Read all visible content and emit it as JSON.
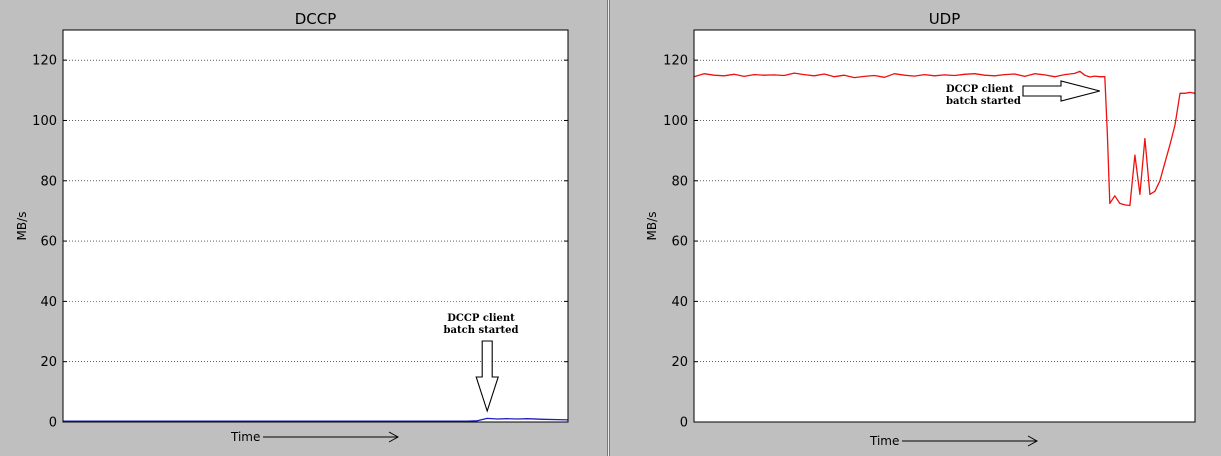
{
  "chart_data": [
    {
      "type": "line",
      "title": "DCCP",
      "xlabel": "Time",
      "ylabel": "MB/s",
      "ylim": [
        0,
        130
      ],
      "yticks": [
        0,
        20,
        40,
        60,
        80,
        100,
        120
      ],
      "grid": "horizontal dotted",
      "line_color": "#1f1fbf",
      "series": [
        {
          "x": [
            0,
            10,
            20,
            30,
            40,
            50,
            60,
            70,
            75,
            80,
            82,
            84,
            86,
            88,
            90,
            92,
            95,
            98,
            100
          ],
          "values": [
            0.3,
            0.3,
            0.3,
            0.3,
            0.3,
            0.3,
            0.3,
            0.3,
            0.3,
            0.3,
            0.4,
            1.2,
            1.0,
            1.1,
            1.0,
            1.1,
            0.9,
            0.8,
            0.7
          ]
        }
      ],
      "annotations": [
        {
          "text_line1": "DCCP client",
          "text_line2": "batch started",
          "arrow": "down",
          "x": 84
        }
      ]
    },
    {
      "type": "line",
      "title": "UDP",
      "xlabel": "Time",
      "ylabel": "MB/s",
      "ylim": [
        0,
        130
      ],
      "yticks": [
        0,
        20,
        40,
        60,
        80,
        100,
        120
      ],
      "grid": "horizontal dotted",
      "line_color": "#ee1111",
      "series": [
        {
          "x": [
            0,
            2,
            4,
            6,
            8,
            10,
            12,
            14,
            16,
            18,
            20,
            22,
            24,
            26,
            28,
            30,
            32,
            34,
            36,
            38,
            40,
            42,
            44,
            46,
            48,
            50,
            52,
            54,
            56,
            58,
            60,
            62,
            64,
            66,
            68,
            70,
            72,
            74,
            76,
            77,
            78,
            79,
            80,
            81,
            82,
            82.5,
            83,
            84,
            85,
            86,
            87,
            88,
            89,
            90,
            91,
            92,
            93,
            94,
            95,
            96,
            97,
            98,
            99,
            100
          ],
          "values": [
            114.5,
            115.5,
            115,
            114.8,
            115.3,
            114.6,
            115.2,
            115,
            115.1,
            114.9,
            115.7,
            115.2,
            114.8,
            115.4,
            114.5,
            115,
            114.2,
            114.6,
            114.9,
            114.3,
            115.5,
            115,
            114.7,
            115.2,
            114.8,
            115.1,
            114.9,
            115.3,
            115.5,
            115,
            114.8,
            115.2,
            115.4,
            114.6,
            115.5,
            115.1,
            114.5,
            115.2,
            115.6,
            116.3,
            115,
            114.4,
            114.7,
            114.5,
            114.5,
            96,
            72.5,
            75,
            72.5,
            72,
            71.8,
            88.5,
            75.5,
            94,
            75.5,
            76.5,
            80,
            86,
            92,
            98.5,
            109,
            109,
            109.3,
            109
          ]
        }
      ],
      "annotations": [
        {
          "text_line1": "DCCP client",
          "text_line2": "batch started",
          "arrow": "right",
          "x": 81
        }
      ]
    }
  ]
}
